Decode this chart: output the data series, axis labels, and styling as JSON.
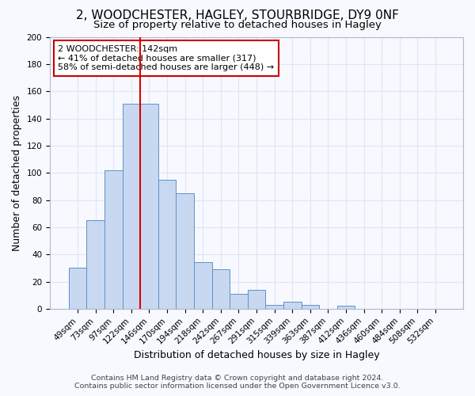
{
  "title": "2, WOODCHESTER, HAGLEY, STOURBRIDGE, DY9 0NF",
  "subtitle": "Size of property relative to detached houses in Hagley",
  "xlabel": "Distribution of detached houses by size in Hagley",
  "ylabel": "Number of detached properties",
  "bar_labels": [
    "49sqm",
    "73sqm",
    "97sqm",
    "122sqm",
    "146sqm",
    "170sqm",
    "194sqm",
    "218sqm",
    "242sqm",
    "267sqm",
    "291sqm",
    "315sqm",
    "339sqm",
    "363sqm",
    "387sqm",
    "412sqm",
    "436sqm",
    "460sqm",
    "484sqm",
    "508sqm",
    "532sqm"
  ],
  "bar_values": [
    30,
    65,
    102,
    151,
    151,
    95,
    85,
    34,
    29,
    11,
    14,
    3,
    5,
    3,
    0,
    2,
    0,
    0,
    0,
    0,
    0
  ],
  "bar_color": "#c8d8f0",
  "bar_edge_color": "#6090cc",
  "vline_color": "#dd0000",
  "ylim": [
    0,
    200
  ],
  "yticks": [
    0,
    20,
    40,
    60,
    80,
    100,
    120,
    140,
    160,
    180,
    200
  ],
  "annotation_text": "2 WOODCHESTER: 142sqm\n← 41% of detached houses are smaller (317)\n58% of semi-detached houses are larger (448) →",
  "annotation_box_facecolor": "#ffffff",
  "annotation_box_edgecolor": "#cc0000",
  "footer_line1": "Contains HM Land Registry data © Crown copyright and database right 2024.",
  "footer_line2": "Contains public sector information licensed under the Open Government Licence v3.0.",
  "background_color": "#f7f9ff",
  "grid_color": "#dde5f5",
  "title_fontsize": 11,
  "subtitle_fontsize": 9.5,
  "axis_label_fontsize": 9,
  "tick_fontsize": 7.5,
  "annotation_fontsize": 8,
  "footer_fontsize": 6.8
}
